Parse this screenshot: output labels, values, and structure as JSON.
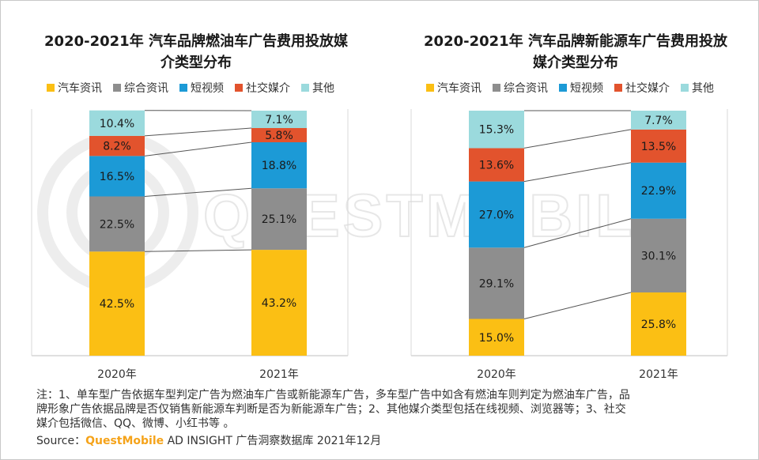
{
  "watermark": {
    "text": "QUESTMOBILE",
    "color": "#d0d0d0"
  },
  "colors": {
    "汽车资讯": "#fbbf14",
    "综合资讯": "#8e8e8e",
    "短视频": "#1c9ad6",
    "社交媒介": "#e2532d",
    "其他": "#9bdadd"
  },
  "legend": [
    "汽车资讯",
    "综合资讯",
    "短视频",
    "社交媒介",
    "其他"
  ],
  "chart_data": [
    {
      "type": "bar",
      "stacked": true,
      "title_lines": [
        "2020-2021年 汽车品牌燃油车广告费用投放媒",
        "介类型分布"
      ],
      "categories": [
        "2020年",
        "2021年"
      ],
      "series": [
        {
          "name": "汽车资讯",
          "values": [
            42.5,
            43.2
          ],
          "labels": [
            "42.5%",
            "43.2%"
          ]
        },
        {
          "name": "综合资讯",
          "values": [
            22.5,
            25.1
          ],
          "labels": [
            "22.5%",
            "25.1%"
          ]
        },
        {
          "name": "短视频",
          "values": [
            16.5,
            18.8
          ],
          "labels": [
            "16.5%",
            "18.8%"
          ]
        },
        {
          "name": "社交媒介",
          "values": [
            8.2,
            5.8
          ],
          "labels": [
            "8.2%",
            "5.8%"
          ]
        },
        {
          "name": "其他",
          "values": [
            10.4,
            7.1
          ],
          "labels": [
            "10.4%",
            "7.1%"
          ]
        }
      ],
      "ylim": [
        0,
        100
      ],
      "legend_position": "top"
    },
    {
      "type": "bar",
      "stacked": true,
      "title_lines": [
        "2020-2021年 汽车品牌新能源车广告费用投放",
        "媒介类型分布"
      ],
      "categories": [
        "2020年",
        "2021年"
      ],
      "series": [
        {
          "name": "汽车资讯",
          "values": [
            15.0,
            25.8
          ],
          "labels": [
            "15.0%",
            "25.8%"
          ]
        },
        {
          "name": "综合资讯",
          "values": [
            29.1,
            30.1
          ],
          "labels": [
            "29.1%",
            "30.1%"
          ]
        },
        {
          "name": "短视频",
          "values": [
            27.0,
            22.9
          ],
          "labels": [
            "27.0%",
            "22.9%"
          ]
        },
        {
          "name": "社交媒介",
          "values": [
            13.6,
            13.5
          ],
          "labels": [
            "13.6%",
            "13.5%"
          ]
        },
        {
          "name": "其他",
          "values": [
            15.3,
            7.7
          ],
          "labels": [
            "15.3%",
            "7.7%"
          ]
        }
      ],
      "ylim": [
        0,
        100
      ],
      "legend_position": "top"
    }
  ],
  "notes": {
    "line1": "注：1、单车型广告依据车型判定广告为燃油车广告或新能源车广告，多车型广告中如含有燃油车则判定为燃油车广告，品",
    "line2": "牌形象广告依据品牌是否仅销售新能源车判断是否为新能源车广告；2、其他媒介类型包括在线视频、浏览器等；3、社交",
    "line3": "媒介包括微信、QQ、微博、小红书等 。"
  },
  "source": {
    "prefix": "Source：",
    "brand": "QuestMobile",
    "suffix": " AD INSIGHT 广告洞察数据库 2021年12月"
  }
}
